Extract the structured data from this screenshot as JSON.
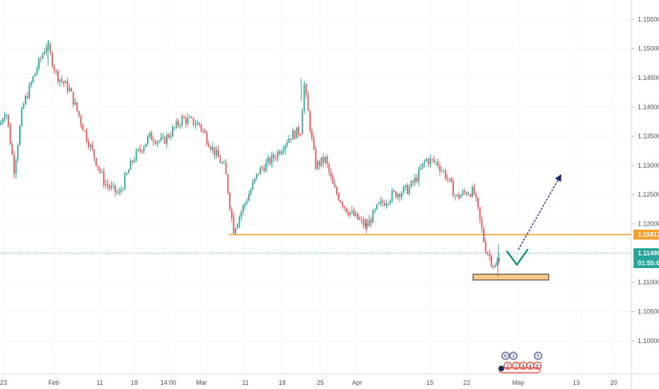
{
  "chart_data": {
    "type": "candlestick",
    "title": "",
    "xlabel": "",
    "ylabel": "",
    "y_axis_side": "right",
    "ylim": [
      1.0943,
      1.1583
    ],
    "grid": true,
    "y_ticks": [
      1.155,
      1.15,
      1.145,
      1.14,
      1.135,
      1.13,
      1.125,
      1.12,
      1.11,
      1.105,
      1.1
    ],
    "y_tick_labels": [
      "1.15500",
      "1.15000",
      "1.14500",
      "1.14000",
      "1.13500",
      "1.13000",
      "1.12500",
      "1.12000",
      "1.11000",
      "1.10500",
      "1.10000"
    ],
    "x_tick_labels": [
      "23",
      "Feb",
      "11",
      "18",
      "14:00",
      "Mar",
      "11",
      "18",
      "25",
      "Apr",
      "15",
      "22",
      "May",
      "13",
      "20"
    ],
    "colors": {
      "up": "#26a69a",
      "down": "#ef5350",
      "support": "#f7a028",
      "current": "#26a69a",
      "arrow": "#1a237e",
      "check": "#00897b"
    },
    "support_level": {
      "value": 1.11817,
      "label": "1.11817"
    },
    "current_price": {
      "value": 1.11499,
      "label": "1.11499",
      "countdown": "01:55:01"
    },
    "demand_zone": {
      "low": 1.1104,
      "high": 1.1114
    },
    "forecast_arrow": {
      "from": 1.1156,
      "to": 1.1283
    },
    "event_markers": [
      {
        "icon": "news-flag-icon",
        "text": "6"
      },
      {
        "icon": "news-flag-icon",
        "text": "3"
      },
      {
        "icon": "news-flag-icon",
        "text": "5"
      },
      {
        "icon": "event-icon",
        "text": "2"
      },
      {
        "icon": "event-icon",
        "text": "7"
      },
      {
        "icon": "event-icon",
        "text": "4"
      },
      {
        "icon": "event-icon",
        "text": "4"
      },
      {
        "icon": "event-icon",
        "text": "6"
      }
    ],
    "series": [
      {
        "name": "",
        "anchors": [
          [
            0,
            1.137
          ],
          [
            8,
            1.1398
          ],
          [
            20,
            1.1293
          ],
          [
            32,
            1.14
          ],
          [
            50,
            1.146
          ],
          [
            66,
            1.1508
          ],
          [
            80,
            1.1455
          ],
          [
            98,
            1.143
          ],
          [
            122,
            1.135
          ],
          [
            148,
            1.127
          ],
          [
            168,
            1.125
          ],
          [
            188,
            1.131
          ],
          [
            212,
            1.135
          ],
          [
            230,
            1.134
          ],
          [
            258,
            1.138
          ],
          [
            282,
            1.137
          ],
          [
            300,
            1.133
          ],
          [
            318,
            1.1295
          ],
          [
            330,
            1.119
          ],
          [
            348,
            1.124
          ],
          [
            366,
            1.129
          ],
          [
            388,
            1.1315
          ],
          [
            410,
            1.135
          ],
          [
            425,
            1.136
          ],
          [
            430,
            1.144
          ],
          [
            438,
            1.137
          ],
          [
            446,
            1.13
          ],
          [
            460,
            1.131
          ],
          [
            472,
            1.126
          ],
          [
            490,
            1.1225
          ],
          [
            518,
            1.1195
          ],
          [
            535,
            1.123
          ],
          [
            555,
            1.125
          ],
          [
            578,
            1.126
          ],
          [
            590,
            1.128
          ],
          [
            602,
            1.131
          ],
          [
            618,
            1.1305
          ],
          [
            632,
            1.128
          ],
          [
            645,
            1.1245
          ],
          [
            660,
            1.1255
          ],
          [
            670,
            1.1255
          ],
          [
            678,
            1.121
          ],
          [
            686,
            1.116
          ],
          [
            700,
            1.1125
          ],
          [
            708,
            1.1146
          ]
        ],
        "annotated_points": [
          {
            "x_label": "Feb",
            "value": 1.1513,
            "note": "high"
          },
          {
            "x_label": "Mar",
            "value": 1.1184,
            "note": "low"
          },
          {
            "x_label": "18",
            "value": 1.1449,
            "note": "high"
          },
          {
            "x_label": "Apr",
            "value": 1.1184,
            "note": "low"
          },
          {
            "x_label": "22",
            "value": 1.111,
            "note": "low"
          }
        ]
      }
    ]
  }
}
